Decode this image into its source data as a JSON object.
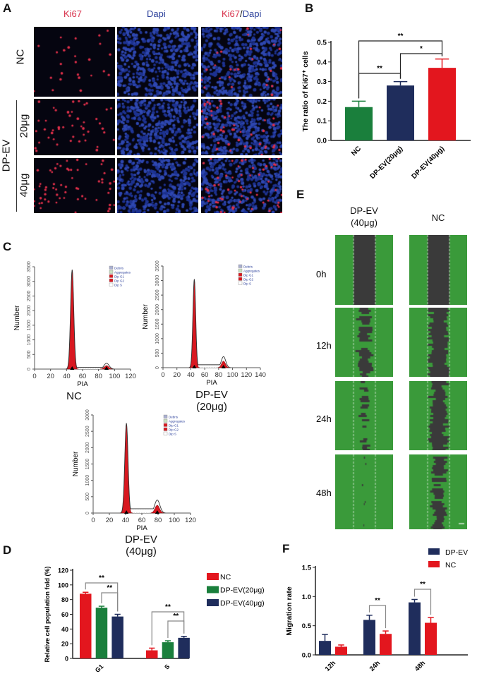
{
  "panel_labels": {
    "a": "A",
    "b": "B",
    "c": "C",
    "d": "D",
    "e": "E",
    "f": "F"
  },
  "panel_a": {
    "columns": [
      {
        "label_red": "Ki67",
        "label_sep": "",
        "label_blue": ""
      },
      {
        "label_red": "",
        "label_sep": "",
        "label_blue": "Dapi"
      },
      {
        "label_red": "Ki67",
        "label_sep": "/",
        "label_blue": "Dapi"
      }
    ],
    "rows": [
      "NC",
      "20μg",
      "40μg"
    ],
    "group_label": "DP-EV",
    "colors": {
      "ki67": "#e0304a",
      "dapi": "#2a3f9a",
      "background": "#050510"
    }
  },
  "panel_c": {
    "histograms": [
      {
        "title": "NC",
        "xlabel": "PIA",
        "ylabel": "Number",
        "xticks": [
          0,
          20,
          40,
          60,
          80,
          100,
          120
        ],
        "yticks": [
          0,
          500,
          1000,
          1500,
          2000,
          2500,
          3000,
          3500
        ],
        "g1_peak": {
          "x": 47,
          "y": 3400
        },
        "g2_peak": {
          "x": 90,
          "y": 200
        }
      },
      {
        "title_line1": "DP-EV",
        "title_line2": "(20μg)",
        "xlabel": "PIA",
        "ylabel": "Number",
        "xticks": [
          0,
          20,
          40,
          60,
          80,
          100,
          120,
          140
        ],
        "yticks": [
          0,
          500,
          1000,
          1500,
          2000,
          2500,
          3000,
          3500
        ],
        "g1_peak": {
          "x": 45,
          "y": 3050
        },
        "g2_peak": {
          "x": 87,
          "y": 380
        }
      },
      {
        "title_line1": "DP-EV",
        "title_line2": "(40μg)",
        "xlabel": "PIA",
        "ylabel": "Number",
        "xticks": [
          0,
          20,
          40,
          60,
          80,
          100,
          120
        ],
        "yticks": [
          0,
          500,
          1000,
          1500,
          2000,
          2500,
          3000
        ],
        "g1_peak": {
          "x": 41,
          "y": 2750
        },
        "g2_peak": {
          "x": 79,
          "y": 400
        }
      }
    ],
    "legend": [
      "Debris",
      "Aggregates",
      "Dip G1",
      "Dip G2",
      "Dip S"
    ]
  },
  "panel_e": {
    "columns": [
      {
        "line1": "DP-EV",
        "line2": "(40μg)"
      },
      {
        "line1": "NC",
        "line2": ""
      }
    ],
    "rows": [
      "0h",
      "12h",
      "24h",
      "48h"
    ],
    "colors": {
      "cells": "#3a9a3a",
      "gap": "#3a3a3a"
    }
  },
  "chart_data": [
    {
      "id": "B",
      "type": "bar",
      "ylabel": "The ratio of Ki67⁺ cells",
      "categories": [
        "NC",
        "DP-EV(20μg)",
        "DP-EV(40μg)"
      ],
      "values": [
        0.17,
        0.28,
        0.37
      ],
      "errors": [
        0.03,
        0.02,
        0.045
      ],
      "colors": [
        "#1a7f3c",
        "#1f2d5c",
        "#e3161e"
      ],
      "ylim": [
        0,
        0.5
      ],
      "yticks": [
        "0.0",
        "0.1",
        "0.2",
        "0.3",
        "0.4",
        "0.5"
      ],
      "significance": [
        {
          "from": 0,
          "to": 1,
          "label": "**"
        },
        {
          "from": 1,
          "to": 2,
          "label": "*"
        },
        {
          "from": 0,
          "to": 2,
          "label": "**"
        }
      ]
    },
    {
      "id": "D",
      "type": "bar",
      "ylabel": "Relative cell population fold (%)",
      "categories": [
        "G1",
        "S"
      ],
      "series": [
        {
          "name": "NC",
          "values": [
            88,
            11
          ],
          "errors": [
            2,
            3
          ],
          "color": "#e3161e"
        },
        {
          "name": "DP-EV(20μg)",
          "values": [
            69,
            22
          ],
          "errors": [
            2,
            2
          ],
          "color": "#1a7f3c"
        },
        {
          "name": "DP-EV(40μg)",
          "values": [
            57,
            28
          ],
          "errors": [
            3,
            2
          ],
          "color": "#1f2d5c"
        }
      ],
      "ylim": [
        0,
        120
      ],
      "yticks": [
        "0",
        "20",
        "40",
        "60",
        "80",
        "100",
        "120"
      ],
      "legend": "right",
      "significance": [
        {
          "group": 0,
          "from": 0,
          "to": 2,
          "label": "**"
        },
        {
          "group": 0,
          "from": 1,
          "to": 2,
          "label": "**"
        },
        {
          "group": 1,
          "from": 0,
          "to": 2,
          "label": "**"
        },
        {
          "group": 1,
          "from": 1,
          "to": 2,
          "label": "**"
        }
      ]
    },
    {
      "id": "F",
      "type": "bar",
      "ylabel": "Migration rate",
      "categories": [
        "12h",
        "24h",
        "48h"
      ],
      "series": [
        {
          "name": "DP-EV",
          "values": [
            0.24,
            0.6,
            0.9
          ],
          "errors": [
            0.11,
            0.08,
            0.05
          ],
          "color": "#1f2d5c"
        },
        {
          "name": "NC",
          "values": [
            0.14,
            0.36,
            0.55
          ],
          "errors": [
            0.03,
            0.05,
            0.09
          ],
          "color": "#e3161e"
        }
      ],
      "ylim": [
        0,
        1.5
      ],
      "yticks": [
        "0.0",
        "0.5",
        "1.0",
        "1.5"
      ],
      "legend": "top-right",
      "significance": [
        {
          "group": 1,
          "from": 0,
          "to": 1,
          "label": "**"
        },
        {
          "group": 2,
          "from": 0,
          "to": 1,
          "label": "**"
        }
      ]
    }
  ]
}
